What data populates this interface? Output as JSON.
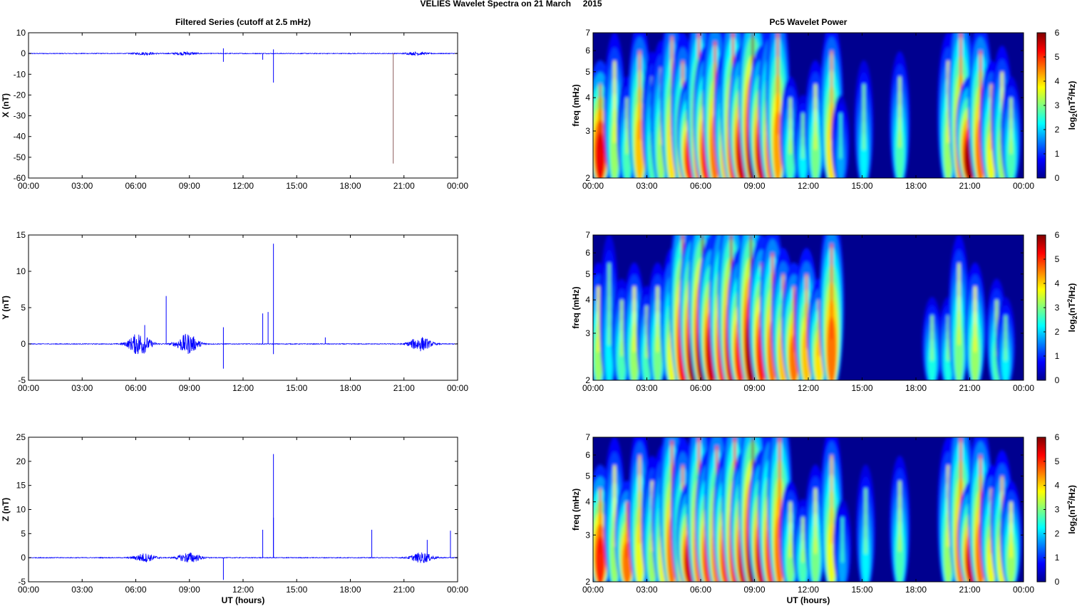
{
  "figure": {
    "title": "VELIES Wavelet Spectra on 21 March     2015",
    "left_title": "Filtered Series (cutoff at 2.5 mHz)",
    "right_title": "Pc5 Wavelet Power",
    "xlabel": "UT (hours)",
    "colorbar_label_base": "log",
    "colorbar_label_sub": "2",
    "colorbar_label_mid": "(nT",
    "colorbar_label_sup": "2",
    "colorbar_label_end": "/Hz)",
    "freq_label": "freq (mHz)"
  },
  "colors": {
    "series_line": "#0000ff",
    "spike_line": "#8b5a5a",
    "jet_low": "#00008f",
    "jet_high": "#800000"
  },
  "time_ticks": [
    "00:00",
    "03:00",
    "06:00",
    "09:00",
    "12:00",
    "15:00",
    "18:00",
    "21:00",
    "00:00"
  ],
  "chart_data": [
    {
      "type": "line",
      "component": "X",
      "ylabel": "X (nT)",
      "ylim": [
        -60,
        10
      ],
      "yticks": [
        10,
        0,
        -10,
        -20,
        -30,
        -40,
        -50,
        -60
      ],
      "xlim_hours": [
        0,
        24
      ],
      "baseline": 0,
      "activity": [
        {
          "hour": 6.5,
          "amp": 0.6
        },
        {
          "hour": 8.8,
          "amp": 0.8
        },
        {
          "hour": 21.7,
          "amp": 0.7
        }
      ],
      "spikes": [
        {
          "hour": 10.9,
          "value": -4,
          "color": "line"
        },
        {
          "hour": 10.9,
          "value": 2.5,
          "color": "line"
        },
        {
          "hour": 13.1,
          "value": -3,
          "color": "line"
        },
        {
          "hour": 13.7,
          "value": -14,
          "color": "line"
        },
        {
          "hour": 13.7,
          "value": 2,
          "color": "line"
        },
        {
          "hour": 20.4,
          "value": -53,
          "color": "spike"
        }
      ]
    },
    {
      "type": "line",
      "component": "Y",
      "ylabel": "Y (nT)",
      "ylim": [
        -5,
        15
      ],
      "yticks": [
        15,
        10,
        5,
        0,
        -5
      ],
      "xlim_hours": [
        0,
        24
      ],
      "baseline": 0,
      "activity": [
        {
          "hour": 6.2,
          "amp": 1.6
        },
        {
          "hour": 8.9,
          "amp": 1.4
        },
        {
          "hour": 21.9,
          "amp": 1.0
        }
      ],
      "spikes": [
        {
          "hour": 6.5,
          "value": 2.6,
          "color": "line"
        },
        {
          "hour": 7.7,
          "value": 6.6,
          "color": "line"
        },
        {
          "hour": 10.9,
          "value": -3.4,
          "color": "line"
        },
        {
          "hour": 10.9,
          "value": 2.3,
          "color": "line"
        },
        {
          "hour": 13.1,
          "value": 4.2,
          "color": "line"
        },
        {
          "hour": 13.4,
          "value": 4.4,
          "color": "line"
        },
        {
          "hour": 13.7,
          "value": 13.8,
          "color": "line"
        },
        {
          "hour": 13.7,
          "value": -1.4,
          "color": "line"
        },
        {
          "hour": 16.6,
          "value": 0.9,
          "color": "line"
        }
      ]
    },
    {
      "type": "line",
      "component": "Z",
      "ylabel": "Z (nT)",
      "ylim": [
        -5,
        25
      ],
      "yticks": [
        25,
        20,
        15,
        10,
        5,
        0,
        -5
      ],
      "xlim_hours": [
        0,
        24
      ],
      "baseline": 0,
      "activity": [
        {
          "hour": 6.5,
          "amp": 0.9
        },
        {
          "hour": 9.0,
          "amp": 1.1
        },
        {
          "hour": 22.0,
          "amp": 1.1
        }
      ],
      "spikes": [
        {
          "hour": 10.9,
          "value": -4.6,
          "color": "line"
        },
        {
          "hour": 13.1,
          "value": 5.8,
          "color": "line"
        },
        {
          "hour": 13.7,
          "value": 21.5,
          "color": "line"
        },
        {
          "hour": 13.7,
          "value": 8.3,
          "color": "line"
        },
        {
          "hour": 19.2,
          "value": 5.8,
          "color": "line"
        },
        {
          "hour": 22.3,
          "value": 3.7,
          "color": "line"
        },
        {
          "hour": 23.6,
          "value": 5.6,
          "color": "line"
        }
      ]
    },
    {
      "type": "heatmap",
      "component": "X",
      "title": "Pc5 Wavelet Power",
      "ylabel": "freq (mHz)",
      "y_scale": "log",
      "ylim_mHz": [
        2,
        7
      ],
      "yticks": [
        2,
        3,
        4,
        5,
        6,
        7
      ],
      "xlim_hours": [
        0,
        24
      ],
      "colorbar_range": [
        0,
        6
      ],
      "colorbar_ticks": [
        0,
        1,
        2,
        3,
        4,
        5,
        6
      ],
      "blobs": [
        {
          "hour": 0.4,
          "power": 5.3,
          "fhi": 4.5
        },
        {
          "hour": 1.2,
          "power": 3.0,
          "fhi": 5.5
        },
        {
          "hour": 1.9,
          "power": 2.5,
          "fhi": 4.0
        },
        {
          "hour": 2.6,
          "power": 4.0,
          "fhi": 6.0
        },
        {
          "hour": 3.3,
          "power": 2.5,
          "fhi": 4.8
        },
        {
          "hour": 3.8,
          "power": 3.0,
          "fhi": 5.2
        },
        {
          "hour": 4.4,
          "power": 3.8,
          "fhi": 6.8
        },
        {
          "hour": 5.0,
          "power": 4.0,
          "fhi": 5.5
        },
        {
          "hour": 5.4,
          "power": 5.0,
          "fhi": 4.0
        },
        {
          "hour": 5.9,
          "power": 4.5,
          "fhi": 7.0
        },
        {
          "hour": 6.3,
          "power": 5.0,
          "fhi": 5.0
        },
        {
          "hour": 6.8,
          "power": 4.5,
          "fhi": 6.5
        },
        {
          "hour": 7.4,
          "power": 4.0,
          "fhi": 5.0
        },
        {
          "hour": 7.8,
          "power": 4.8,
          "fhi": 7.0
        },
        {
          "hour": 8.3,
          "power": 5.5,
          "fhi": 5.0
        },
        {
          "hour": 8.9,
          "power": 6.0,
          "fhi": 7.0
        },
        {
          "hour": 9.4,
          "power": 5.5,
          "fhi": 5.0
        },
        {
          "hour": 9.9,
          "power": 4.5,
          "fhi": 6.0
        },
        {
          "hour": 10.3,
          "power": 4.2,
          "fhi": 7.0
        },
        {
          "hour": 11.0,
          "power": 2.5,
          "fhi": 4.0
        },
        {
          "hour": 11.7,
          "power": 2.0,
          "fhi": 3.5
        },
        {
          "hour": 12.4,
          "power": 2.8,
          "fhi": 4.5
        },
        {
          "hour": 13.3,
          "power": 3.8,
          "fhi": 6.0
        },
        {
          "hour": 13.8,
          "power": 1.5,
          "fhi": 3.5
        },
        {
          "hour": 15.1,
          "power": 2.0,
          "fhi": 4.5
        },
        {
          "hour": 17.1,
          "power": 2.5,
          "fhi": 4.8
        },
        {
          "hour": 19.8,
          "power": 3.0,
          "fhi": 5.5
        },
        {
          "hour": 20.5,
          "power": 4.5,
          "fhi": 7.0
        },
        {
          "hour": 21.0,
          "power": 5.8,
          "fhi": 4.0
        },
        {
          "hour": 21.6,
          "power": 4.5,
          "fhi": 6.0
        },
        {
          "hour": 22.2,
          "power": 3.5,
          "fhi": 4.5
        },
        {
          "hour": 22.8,
          "power": 3.0,
          "fhi": 5.0
        },
        {
          "hour": 23.3,
          "power": 2.5,
          "fhi": 4.0
        }
      ]
    },
    {
      "type": "heatmap",
      "component": "Y",
      "title": "",
      "ylabel": "freq (mHz)",
      "y_scale": "log",
      "ylim_mHz": [
        2,
        7
      ],
      "yticks": [
        2,
        3,
        4,
        5,
        6,
        7
      ],
      "xlim_hours": [
        0,
        24
      ],
      "colorbar_range": [
        0,
        6
      ],
      "colorbar_ticks": [
        0,
        1,
        2,
        3,
        4,
        5,
        6
      ],
      "blobs": [
        {
          "hour": 0.3,
          "power": 3.0,
          "fhi": 4.5
        },
        {
          "hour": 0.9,
          "power": 2.0,
          "fhi": 5.5
        },
        {
          "hour": 1.6,
          "power": 2.5,
          "fhi": 4.0
        },
        {
          "hour": 2.3,
          "power": 3.0,
          "fhi": 4.5
        },
        {
          "hour": 3.0,
          "power": 2.5,
          "fhi": 3.8
        },
        {
          "hour": 3.6,
          "power": 2.8,
          "fhi": 4.5
        },
        {
          "hour": 4.4,
          "power": 3.5,
          "fhi": 5.0
        },
        {
          "hour": 5.0,
          "power": 5.2,
          "fhi": 7.0
        },
        {
          "hour": 5.6,
          "power": 6.0,
          "fhi": 6.0
        },
        {
          "hour": 6.1,
          "power": 6.0,
          "fhi": 7.0
        },
        {
          "hour": 6.6,
          "power": 5.5,
          "fhi": 5.5
        },
        {
          "hour": 7.2,
          "power": 5.0,
          "fhi": 6.5
        },
        {
          "hour": 7.7,
          "power": 5.5,
          "fhi": 7.0
        },
        {
          "hour": 8.2,
          "power": 5.0,
          "fhi": 5.0
        },
        {
          "hour": 8.8,
          "power": 5.8,
          "fhi": 7.0
        },
        {
          "hour": 9.4,
          "power": 5.0,
          "fhi": 5.5
        },
        {
          "hour": 10.0,
          "power": 4.5,
          "fhi": 6.0
        },
        {
          "hour": 10.6,
          "power": 4.0,
          "fhi": 5.0
        },
        {
          "hour": 11.2,
          "power": 4.5,
          "fhi": 4.5
        },
        {
          "hour": 11.9,
          "power": 4.0,
          "fhi": 5.0
        },
        {
          "hour": 12.6,
          "power": 3.8,
          "fhi": 4.0
        },
        {
          "hour": 13.3,
          "power": 4.5,
          "fhi": 6.5
        },
        {
          "hour": 18.9,
          "power": 2.2,
          "fhi": 3.5
        },
        {
          "hour": 19.8,
          "power": 2.2,
          "fhi": 3.5
        },
        {
          "hour": 20.4,
          "power": 2.8,
          "fhi": 5.5
        },
        {
          "hour": 21.3,
          "power": 3.0,
          "fhi": 4.5
        },
        {
          "hour": 22.5,
          "power": 2.5,
          "fhi": 4.0
        },
        {
          "hour": 23.0,
          "power": 2.0,
          "fhi": 3.5
        }
      ]
    },
    {
      "type": "heatmap",
      "component": "Z",
      "title": "",
      "ylabel": "freq (mHz)",
      "y_scale": "log",
      "ylim_mHz": [
        2,
        7
      ],
      "yticks": [
        2,
        3,
        4,
        5,
        6,
        7
      ],
      "xlim_hours": [
        0,
        24
      ],
      "colorbar_range": [
        0,
        6
      ],
      "colorbar_ticks": [
        0,
        1,
        2,
        3,
        4,
        5,
        6
      ],
      "blobs": [
        {
          "hour": 0.4,
          "power": 5.0,
          "fhi": 4.5
        },
        {
          "hour": 1.2,
          "power": 3.0,
          "fhi": 5.5
        },
        {
          "hour": 1.9,
          "power": 4.5,
          "fhi": 4.0
        },
        {
          "hour": 2.6,
          "power": 3.5,
          "fhi": 6.0
        },
        {
          "hour": 3.3,
          "power": 3.0,
          "fhi": 4.8
        },
        {
          "hour": 3.9,
          "power": 3.5,
          "fhi": 5.2
        },
        {
          "hour": 4.4,
          "power": 4.5,
          "fhi": 6.8
        },
        {
          "hour": 5.0,
          "power": 4.0,
          "fhi": 5.5
        },
        {
          "hour": 5.4,
          "power": 5.5,
          "fhi": 4.0
        },
        {
          "hour": 5.9,
          "power": 4.5,
          "fhi": 7.0
        },
        {
          "hour": 6.4,
          "power": 4.8,
          "fhi": 5.0
        },
        {
          "hour": 6.9,
          "power": 4.5,
          "fhi": 6.5
        },
        {
          "hour": 7.4,
          "power": 4.8,
          "fhi": 5.0
        },
        {
          "hour": 7.9,
          "power": 5.0,
          "fhi": 7.0
        },
        {
          "hour": 8.4,
          "power": 5.5,
          "fhi": 5.0
        },
        {
          "hour": 8.9,
          "power": 6.0,
          "fhi": 7.0
        },
        {
          "hour": 9.4,
          "power": 5.5,
          "fhi": 5.0
        },
        {
          "hour": 9.9,
          "power": 4.8,
          "fhi": 6.0
        },
        {
          "hour": 10.4,
          "power": 4.5,
          "fhi": 7.0
        },
        {
          "hour": 11.0,
          "power": 2.8,
          "fhi": 4.0
        },
        {
          "hour": 11.7,
          "power": 2.5,
          "fhi": 3.5
        },
        {
          "hour": 12.4,
          "power": 2.8,
          "fhi": 4.5
        },
        {
          "hour": 13.3,
          "power": 3.5,
          "fhi": 6.0
        },
        {
          "hour": 13.9,
          "power": 1.5,
          "fhi": 3.5
        },
        {
          "hour": 15.2,
          "power": 2.0,
          "fhi": 4.5
        },
        {
          "hour": 17.1,
          "power": 2.5,
          "fhi": 4.8
        },
        {
          "hour": 19.8,
          "power": 3.0,
          "fhi": 5.5
        },
        {
          "hour": 20.5,
          "power": 4.5,
          "fhi": 7.0
        },
        {
          "hour": 21.1,
          "power": 5.5,
          "fhi": 4.0
        },
        {
          "hour": 21.6,
          "power": 4.5,
          "fhi": 6.0
        },
        {
          "hour": 22.2,
          "power": 3.5,
          "fhi": 4.5
        },
        {
          "hour": 22.8,
          "power": 3.5,
          "fhi": 5.0
        },
        {
          "hour": 23.3,
          "power": 3.0,
          "fhi": 4.0
        }
      ]
    }
  ]
}
